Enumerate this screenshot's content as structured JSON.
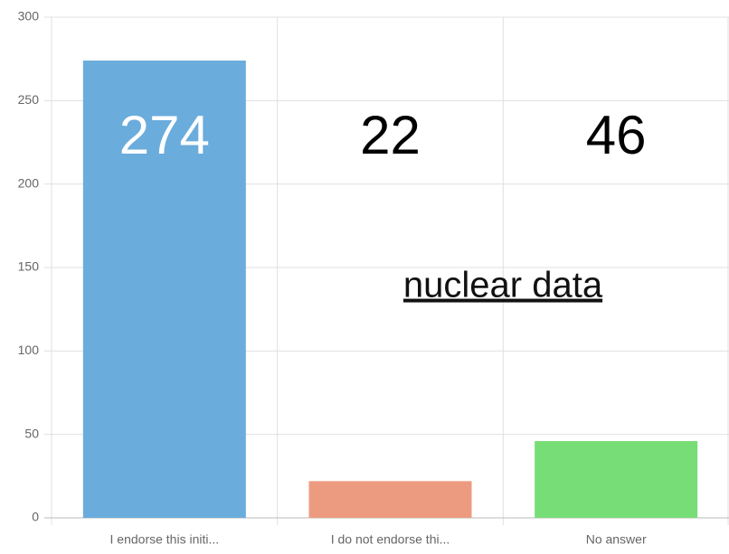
{
  "chart_data": {
    "type": "bar",
    "categories": [
      "I endorse this initi...",
      "I do not endorse thi...",
      "No answer"
    ],
    "values": [
      274,
      22,
      46
    ],
    "colors": [
      "#6aacdc",
      "#ec9b80",
      "#77dd77"
    ],
    "value_label_colors": [
      "#ffffff",
      "#000000",
      "#000000"
    ],
    "ylim": [
      0,
      300
    ],
    "yticks": [
      0,
      50,
      100,
      150,
      200,
      250,
      300
    ],
    "grid": true,
    "annotation": "nuclear data"
  }
}
